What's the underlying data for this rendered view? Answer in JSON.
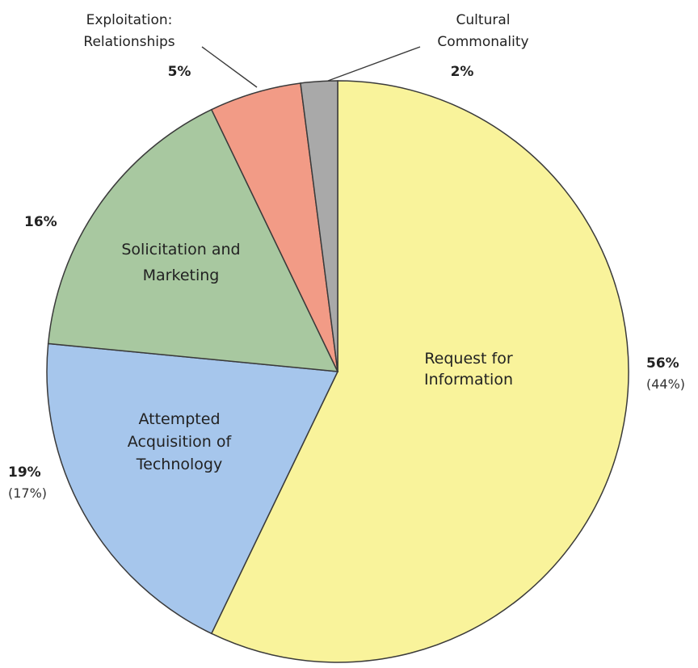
{
  "chart_data": {
    "type": "pie",
    "title": "",
    "slices": [
      {
        "label_lines": [
          "Request for",
          "Information"
        ],
        "value": 56,
        "value_text": "56%",
        "secondary_text": "(44%)",
        "color": "#f9f39b"
      },
      {
        "label_lines": [
          "Attempted",
          "Acquisition of",
          "Technology"
        ],
        "value": 19,
        "value_text": "19%",
        "secondary_text": "(17%)",
        "color": "#a6c6ec"
      },
      {
        "label_lines": [
          "Solicitation and",
          "Marketing"
        ],
        "value": 16,
        "value_text": "16%",
        "secondary_text": "",
        "color": "#a8c8a0"
      },
      {
        "label_lines": [
          "Exploitation:",
          "Relationships"
        ],
        "value": 5,
        "value_text": "5%",
        "secondary_text": "",
        "color": "#f29b86"
      },
      {
        "label_lines": [
          "Cultural",
          "Commonality"
        ],
        "value": 2,
        "value_text": "2%",
        "secondary_text": "",
        "color": "#a9a9a9"
      }
    ]
  }
}
